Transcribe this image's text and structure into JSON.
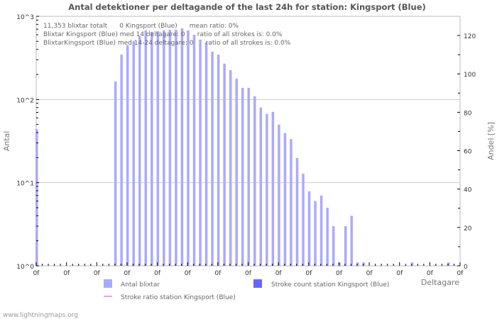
{
  "chart_data": {
    "type": "bar",
    "title": "Antal detektioner per deltagande of the last 24h for station: Kingsport (Blue)",
    "xlabel": "Deltagare",
    "ylabel": "Antal",
    "y2label": "Andel [%]",
    "yscale": "log",
    "ylim": [
      1,
      1000
    ],
    "y_tick_labels": [
      "10^0",
      "10^1",
      "10^2",
      "10^3"
    ],
    "y2lim": [
      0,
      130
    ],
    "y2_tick_labels": [
      "0",
      "20",
      "40",
      "60",
      "80",
      "100",
      "120"
    ],
    "x_tick_labels": [
      "0f",
      "0f",
      "0f",
      "0f",
      "0f",
      "0f",
      "0f",
      "0f",
      "0f",
      "0f",
      "0f",
      "0f",
      "0f",
      "0f",
      "0f"
    ],
    "slot_count": 70,
    "series": [
      {
        "name": "Antal blixtar",
        "color": "#aaaaff",
        "slots": [
          0,
          13,
          14,
          15,
          16,
          17,
          18,
          19,
          20,
          21,
          22,
          23,
          24,
          25,
          26,
          27,
          28,
          29,
          30,
          31,
          32,
          33,
          34,
          35,
          36,
          37,
          38,
          39,
          40,
          41,
          42,
          43,
          44,
          45,
          46,
          47,
          48,
          49,
          50,
          51,
          52,
          53,
          54,
          62,
          68
        ],
        "values": [
          44,
          165,
          347,
          448,
          505,
          578,
          678,
          649,
          665,
          678,
          690,
          690,
          718,
          678,
          600,
          525,
          484,
          376,
          347,
          270,
          225,
          178,
          138,
          138,
          109,
          80,
          67,
          71,
          50,
          39.5,
          33.5,
          19.8,
          12.8,
          7.9,
          6,
          7,
          5,
          3,
          1.1,
          3,
          4,
          1.1,
          1.1,
          1.1,
          1.1
        ]
      },
      {
        "name": "Stroke count station Kingsport (Blue)",
        "color": "#6666ff",
        "values": []
      },
      {
        "name": "Stroke ratio station Kingsport (Blue)",
        "color": "#ee99ee",
        "values": []
      }
    ],
    "legend_placement": "bottom",
    "grid": true,
    "annotations": [
      "11,353 blixtar totalt      0 Kingsport (Blue)      mean ratio: 0%",
      "Blixtar Kingsport (Blue) med 14 deltagare: 0      ratio of all strokes is: 0.0%",
      "BlixtarKingsport (Blue) med 14-24 deltagare: 0      ratio of all strokes is: 0.0%"
    ]
  },
  "footer": "www.lightningmaps.org"
}
